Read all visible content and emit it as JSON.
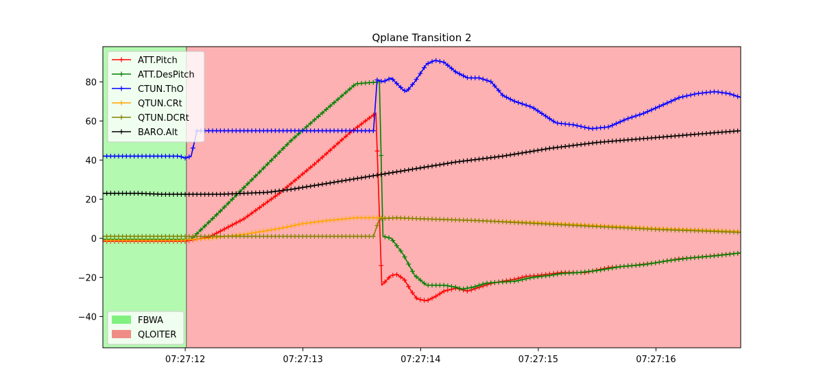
{
  "chart_data": {
    "type": "line",
    "title": "Qplane Transition 2",
    "xlabel": "",
    "ylabel": "",
    "x_ticks": [
      "07:27:12",
      "07:27:13",
      "07:27:14",
      "07:27:15",
      "07:27:16"
    ],
    "x_tick_values": [
      12,
      13,
      14,
      15,
      16
    ],
    "xlim": [
      11.3,
      16.72
    ],
    "y_ticks": [
      "−40",
      "−20",
      "0",
      "20",
      "40",
      "60",
      "80"
    ],
    "y_tick_values": [
      -40,
      -20,
      0,
      20,
      40,
      60,
      80
    ],
    "ylim": [
      -56,
      98
    ],
    "grid": false,
    "legend_placement": "upper-left",
    "mode_legend_placement": "lower-left",
    "modes": [
      {
        "name": "FBWA",
        "start": 11.3,
        "end": 12.01,
        "color": "#b3f9b0",
        "legend_color": "#80f07f"
      },
      {
        "name": "QLOITER",
        "start": 12.01,
        "end": 16.72,
        "color": "#fdb1b2",
        "legend_color": "#f08c86"
      }
    ],
    "series": [
      {
        "name": "ATT.Pitch",
        "color": "#ff0000",
        "points": [
          [
            11.3,
            -1.5
          ],
          [
            12.0,
            -1.5
          ],
          [
            12.2,
            0.5
          ],
          [
            12.5,
            10
          ],
          [
            12.8,
            23
          ],
          [
            13.1,
            38
          ],
          [
            13.4,
            54
          ],
          [
            13.62,
            64
          ],
          [
            13.67,
            -24
          ],
          [
            13.75,
            -19
          ],
          [
            13.8,
            -18.5
          ],
          [
            13.86,
            -21
          ],
          [
            13.92,
            -27
          ],
          [
            13.97,
            -31
          ],
          [
            14.05,
            -32
          ],
          [
            14.12,
            -30
          ],
          [
            14.2,
            -27
          ],
          [
            14.3,
            -25.5
          ],
          [
            14.4,
            -27
          ],
          [
            14.5,
            -25
          ],
          [
            14.6,
            -23
          ],
          [
            14.7,
            -22
          ],
          [
            14.8,
            -21
          ],
          [
            14.9,
            -19.5
          ],
          [
            15.0,
            -19
          ],
          [
            15.2,
            -17.5
          ],
          [
            15.4,
            -17.5
          ],
          [
            15.6,
            -15
          ],
          [
            15.8,
            -14
          ],
          [
            16.0,
            -12.5
          ],
          [
            16.2,
            -10.5
          ],
          [
            16.4,
            -9.5
          ],
          [
            16.72,
            -7.5
          ]
        ]
      },
      {
        "name": "ATT.DesPitch",
        "color": "#008000",
        "points": [
          [
            11.3,
            -0.5
          ],
          [
            12.05,
            -0.5
          ],
          [
            12.3,
            14
          ],
          [
            12.6,
            32
          ],
          [
            12.9,
            50
          ],
          [
            13.2,
            66
          ],
          [
            13.45,
            79
          ],
          [
            13.65,
            80
          ],
          [
            13.68,
            1
          ],
          [
            13.75,
            0
          ],
          [
            13.85,
            -8
          ],
          [
            13.95,
            -19
          ],
          [
            14.05,
            -24
          ],
          [
            14.2,
            -24
          ],
          [
            14.3,
            -25
          ],
          [
            14.35,
            -26
          ],
          [
            14.45,
            -25
          ],
          [
            14.55,
            -23
          ],
          [
            14.65,
            -22.5
          ],
          [
            14.8,
            -22
          ],
          [
            14.95,
            -20
          ],
          [
            15.1,
            -19
          ],
          [
            15.2,
            -18
          ],
          [
            15.35,
            -17.5
          ],
          [
            15.5,
            -16.5
          ],
          [
            15.7,
            -14.5
          ],
          [
            15.9,
            -13.5
          ],
          [
            16.1,
            -11.5
          ],
          [
            16.3,
            -10
          ],
          [
            16.5,
            -9
          ],
          [
            16.72,
            -7.5
          ]
        ]
      },
      {
        "name": "CTUN.ThO",
        "color": "#0000ff",
        "points": [
          [
            11.3,
            42
          ],
          [
            11.95,
            42
          ],
          [
            12.0,
            41
          ],
          [
            12.05,
            42
          ],
          [
            12.1,
            55
          ],
          [
            13.6,
            55
          ],
          [
            13.63,
            81
          ],
          [
            13.68,
            80
          ],
          [
            13.75,
            82
          ],
          [
            13.85,
            76
          ],
          [
            13.88,
            75
          ],
          [
            13.95,
            80
          ],
          [
            14.05,
            89
          ],
          [
            14.12,
            91
          ],
          [
            14.2,
            90
          ],
          [
            14.3,
            85
          ],
          [
            14.4,
            82
          ],
          [
            14.5,
            82
          ],
          [
            14.6,
            80
          ],
          [
            14.7,
            73
          ],
          [
            14.8,
            70
          ],
          [
            14.95,
            67
          ],
          [
            15.05,
            63
          ],
          [
            15.15,
            59
          ],
          [
            15.3,
            58
          ],
          [
            15.45,
            56
          ],
          [
            15.6,
            57
          ],
          [
            15.75,
            61
          ],
          [
            15.9,
            64
          ],
          [
            16.05,
            68
          ],
          [
            16.2,
            72
          ],
          [
            16.35,
            74
          ],
          [
            16.5,
            75
          ],
          [
            16.62,
            74
          ],
          [
            16.72,
            72
          ]
        ]
      },
      {
        "name": "QTUN.CRt",
        "color": "#ffa500",
        "points": [
          [
            11.3,
            -1
          ],
          [
            11.95,
            -1
          ],
          [
            12.2,
            0
          ],
          [
            12.5,
            2
          ],
          [
            12.8,
            5
          ],
          [
            13.0,
            7.5
          ],
          [
            13.2,
            9
          ],
          [
            13.45,
            10.5
          ],
          [
            13.62,
            10.5
          ],
          [
            13.67,
            10.5
          ],
          [
            14.0,
            10
          ],
          [
            14.5,
            9
          ],
          [
            15.0,
            8
          ],
          [
            15.5,
            6.5
          ],
          [
            16.0,
            5
          ],
          [
            16.5,
            4
          ],
          [
            16.72,
            3.5
          ]
        ]
      },
      {
        "name": "QTUN.DCRt",
        "color": "#808000",
        "points": [
          [
            11.3,
            1
          ],
          [
            13.6,
            1
          ],
          [
            13.65,
            10
          ],
          [
            13.8,
            10.5
          ],
          [
            14.0,
            10
          ],
          [
            14.5,
            9
          ],
          [
            15.0,
            7.5
          ],
          [
            15.5,
            6
          ],
          [
            16.0,
            4.5
          ],
          [
            16.5,
            3.5
          ],
          [
            16.72,
            3
          ]
        ]
      },
      {
        "name": "BARO.Alt",
        "color": "#000000",
        "points": [
          [
            11.3,
            23
          ],
          [
            11.6,
            23
          ],
          [
            11.8,
            22.5
          ],
          [
            12.1,
            22.5
          ],
          [
            12.3,
            22.5
          ],
          [
            12.5,
            23
          ],
          [
            12.7,
            23.5
          ],
          [
            12.9,
            25
          ],
          [
            13.1,
            27
          ],
          [
            13.3,
            29
          ],
          [
            13.5,
            31
          ],
          [
            13.7,
            33
          ],
          [
            13.9,
            35
          ],
          [
            14.1,
            37
          ],
          [
            14.3,
            39
          ],
          [
            14.5,
            40.5
          ],
          [
            14.7,
            42
          ],
          [
            14.9,
            44
          ],
          [
            15.1,
            46
          ],
          [
            15.3,
            47.5
          ],
          [
            15.5,
            49
          ],
          [
            15.7,
            50
          ],
          [
            15.9,
            51
          ],
          [
            16.1,
            52
          ],
          [
            16.3,
            53
          ],
          [
            16.5,
            54
          ],
          [
            16.72,
            55
          ]
        ]
      }
    ]
  }
}
